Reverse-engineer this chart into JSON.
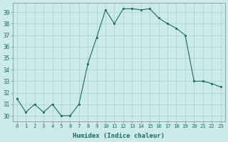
{
  "x": [
    0,
    1,
    2,
    3,
    4,
    5,
    6,
    7,
    8,
    9,
    10,
    11,
    12,
    13,
    14,
    15,
    16,
    17,
    18,
    19,
    20,
    21,
    22,
    23
  ],
  "y": [
    31.5,
    30.3,
    31.0,
    30.3,
    31.0,
    30.0,
    30.0,
    31.0,
    34.5,
    36.8,
    39.2,
    38.0,
    39.3,
    39.3,
    39.2,
    39.3,
    38.5,
    38.0,
    37.6,
    37.0,
    33.0,
    33.0,
    32.8,
    32.5
  ],
  "line_color": "#1a6b5a",
  "marker_color": "#1a6b5a",
  "bg_color": "#cceaea",
  "grid_color": "#aacece",
  "xlabel": "Humidex (Indice chaleur)",
  "ylim_min": 29.5,
  "ylim_max": 39.8,
  "xlim_min": -0.5,
  "xlim_max": 23.5,
  "yticks": [
    30,
    31,
    32,
    33,
    34,
    35,
    36,
    37,
    38,
    39
  ],
  "xticks": [
    0,
    1,
    2,
    3,
    4,
    5,
    6,
    7,
    8,
    9,
    10,
    11,
    12,
    13,
    14,
    15,
    16,
    17,
    18,
    19,
    20,
    21,
    22,
    23
  ]
}
